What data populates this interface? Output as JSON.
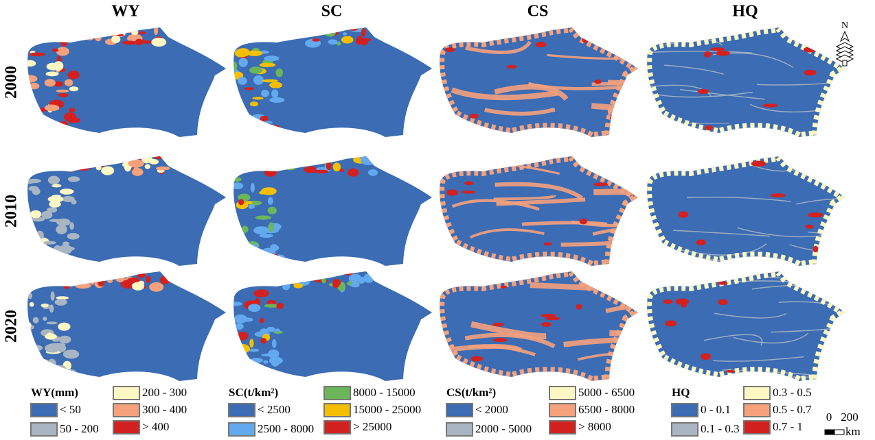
{
  "columns": [
    "WY",
    "SC",
    "CS",
    "HQ"
  ],
  "rows": [
    "2000",
    "2010",
    "2020"
  ],
  "north_label": "N",
  "scale_bar": {
    "labels": [
      "0",
      "200"
    ],
    "unit": "km"
  },
  "legends": [
    {
      "title": "WY(mm)",
      "items": [
        {
          "label": "< 50",
          "color": "#3b6cb4"
        },
        {
          "label": "50 - 200",
          "color": "#a9b5c2"
        },
        {
          "label": "200 - 300",
          "color": "#fdf7c3"
        },
        {
          "label": "300 - 400",
          "color": "#f5a17c"
        },
        {
          "label": "> 400",
          "color": "#d3211f"
        }
      ]
    },
    {
      "title": "SC(t/km²)",
      "items": [
        {
          "label": "< 2500",
          "color": "#3b6cb4"
        },
        {
          "label": "2500 - 8000",
          "color": "#62a9ef"
        },
        {
          "label": "8000 - 15000",
          "color": "#6bb65a"
        },
        {
          "label": "15000 - 25000",
          "color": "#f4bf00"
        },
        {
          "label": "> 25000",
          "color": "#d3211f"
        }
      ]
    },
    {
      "title": "CS(t/km²)",
      "items": [
        {
          "label": "< 2000",
          "color": "#3b6cb4"
        },
        {
          "label": "2000 - 5000",
          "color": "#a9b5c2"
        },
        {
          "label": "5000 - 6500",
          "color": "#fdf7c3"
        },
        {
          "label": "6500 - 8000",
          "color": "#f5a17c"
        },
        {
          "label": "> 8000",
          "color": "#d3211f"
        }
      ]
    },
    {
      "title": "HQ",
      "items": [
        {
          "label": "0 - 0.1",
          "color": "#3b6cb4"
        },
        {
          "label": "0.1 - 0.3",
          "color": "#a9b5c2"
        },
        {
          "label": "0.3 - 0.5",
          "color": "#fdf7c3"
        },
        {
          "label": "0.5 - 0.7",
          "color": "#f5a17c"
        },
        {
          "label": "0.7 - 1",
          "color": "#d3211f"
        }
      ]
    }
  ]
}
